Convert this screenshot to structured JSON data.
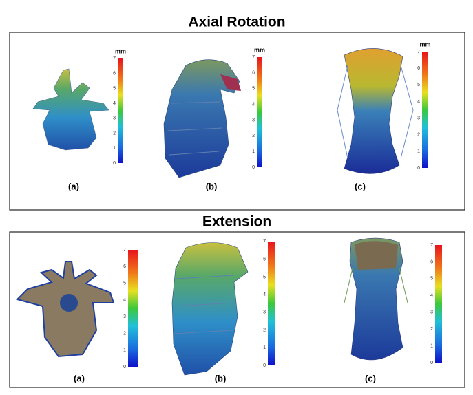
{
  "panels": [
    {
      "title": "Axial Rotation",
      "views": [
        {
          "label": "(a)",
          "colorbar": {
            "unit": "mm",
            "ticks": [
              0,
              1,
              2,
              3,
              4,
              5,
              6,
              7
            ]
          }
        },
        {
          "label": "(b)",
          "colorbar": {
            "unit": "mm",
            "ticks": [
              0,
              1,
              2,
              3,
              4,
              5,
              6,
              7
            ]
          }
        },
        {
          "label": "(c)",
          "colorbar": {
            "unit": "mm",
            "ticks": [
              0,
              1,
              2,
              3,
              4,
              5,
              6,
              7
            ]
          }
        }
      ]
    },
    {
      "title": "Extension",
      "views": [
        {
          "label": "(a)",
          "colorbar": {
            "ticks": [
              0,
              1,
              2,
              3,
              4,
              5,
              6,
              7
            ]
          }
        },
        {
          "label": "(b)",
          "colorbar": {
            "ticks": [
              0,
              1,
              2,
              3,
              4,
              5,
              6,
              7
            ]
          }
        },
        {
          "label": "(c)",
          "colorbar": {
            "ticks": [
              0,
              1,
              2,
              3,
              4,
              5,
              6,
              7
            ]
          }
        }
      ]
    }
  ]
}
